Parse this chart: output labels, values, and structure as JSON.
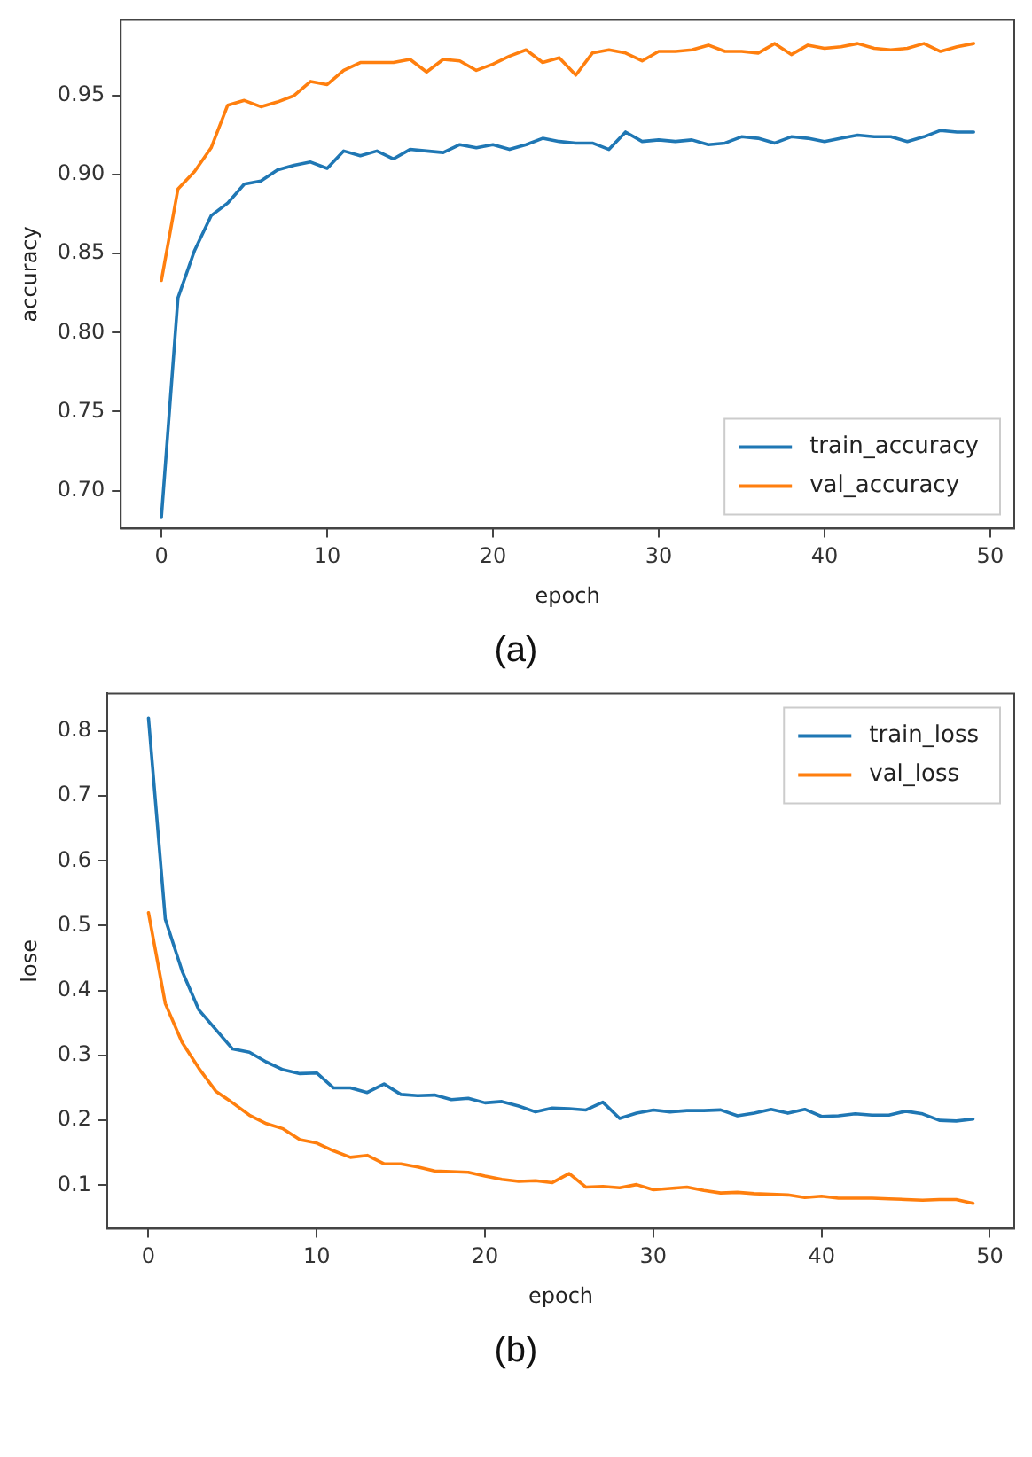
{
  "chart_data": [
    {
      "type": "line",
      "xlabel": "epoch",
      "ylabel": "accuracy",
      "annotations": [
        "(a)"
      ],
      "legend": "bottom right",
      "grid": false,
      "marker": "none",
      "line_style": "solid",
      "x": [
        0,
        1,
        2,
        3,
        4,
        5,
        6,
        7,
        8,
        9,
        10,
        11,
        12,
        13,
        14,
        15,
        16,
        17,
        18,
        19,
        20,
        21,
        22,
        23,
        24,
        25,
        26,
        27,
        28,
        29,
        30,
        31,
        32,
        33,
        34,
        35,
        36,
        37,
        38,
        39,
        40,
        41,
        42,
        43,
        44,
        45,
        46,
        47,
        48,
        49
      ],
      "xlim": [
        -2.45,
        51.45
      ],
      "xticks": [
        0,
        10,
        20,
        30,
        40,
        50
      ],
      "ylim": [
        0.676,
        0.998
      ],
      "yticks": [
        {
          "value": 0.7,
          "label": "0.70"
        },
        {
          "value": 0.75,
          "label": "0.75"
        },
        {
          "value": 0.8,
          "label": "0.80"
        },
        {
          "value": 0.85,
          "label": "0.85"
        },
        {
          "value": 0.9,
          "label": "0.90"
        },
        {
          "value": 0.95,
          "label": "0.95"
        }
      ],
      "series": [
        {
          "name": "train_accuracy",
          "color": "#1f77b4",
          "values": [
            0.683,
            0.822,
            0.852,
            0.874,
            0.882,
            0.894,
            0.896,
            0.903,
            0.906,
            0.908,
            0.904,
            0.915,
            0.912,
            0.915,
            0.91,
            0.916,
            0.915,
            0.914,
            0.919,
            0.917,
            0.919,
            0.916,
            0.919,
            0.923,
            0.921,
            0.92,
            0.92,
            0.916,
            0.927,
            0.921,
            0.922,
            0.921,
            0.922,
            0.919,
            0.92,
            0.924,
            0.923,
            0.92,
            0.924,
            0.923,
            0.921,
            0.923,
            0.925,
            0.924,
            0.924,
            0.921,
            0.924,
            0.928,
            0.927,
            0.927
          ]
        },
        {
          "name": "val_accuracy",
          "color": "#ff7f0e",
          "values": [
            0.833,
            0.891,
            0.902,
            0.917,
            0.944,
            0.947,
            0.943,
            0.946,
            0.95,
            0.959,
            0.957,
            0.966,
            0.971,
            0.971,
            0.971,
            0.973,
            0.965,
            0.973,
            0.972,
            0.966,
            0.97,
            0.975,
            0.979,
            0.971,
            0.974,
            0.963,
            0.977,
            0.979,
            0.977,
            0.972,
            0.978,
            0.978,
            0.979,
            0.982,
            0.978,
            0.978,
            0.977,
            0.983,
            0.976,
            0.982,
            0.98,
            0.981,
            0.983,
            0.98,
            0.979,
            0.98,
            0.983,
            0.978,
            0.981,
            0.983
          ]
        }
      ]
    },
    {
      "type": "line",
      "xlabel": "epoch",
      "ylabel": "lose",
      "annotations": [
        "(b)"
      ],
      "legend": "top right",
      "grid": false,
      "marker": "none",
      "line_style": "solid",
      "x": [
        0,
        1,
        2,
        3,
        4,
        5,
        6,
        7,
        8,
        9,
        10,
        11,
        12,
        13,
        14,
        15,
        16,
        17,
        18,
        19,
        20,
        21,
        22,
        23,
        24,
        25,
        26,
        27,
        28,
        29,
        30,
        31,
        32,
        33,
        34,
        35,
        36,
        37,
        38,
        39,
        40,
        41,
        42,
        43,
        44,
        45,
        46,
        47,
        48,
        49
      ],
      "xlim": [
        -2.45,
        51.45
      ],
      "xticks": [
        0,
        10,
        20,
        30,
        40,
        50
      ],
      "ylim": [
        0.033,
        0.858
      ],
      "yticks": [
        0.1,
        0.2,
        0.3,
        0.4,
        0.5,
        0.6,
        0.7,
        0.8
      ],
      "series": [
        {
          "name": "train_loss",
          "color": "#1f77b4",
          "values": [
            0.82,
            0.51,
            0.43,
            0.37,
            0.34,
            0.31,
            0.305,
            0.29,
            0.278,
            0.272,
            0.273,
            0.25,
            0.25,
            0.243,
            0.256,
            0.24,
            0.238,
            0.239,
            0.232,
            0.234,
            0.227,
            0.229,
            0.222,
            0.213,
            0.219,
            0.218,
            0.216,
            0.228,
            0.203,
            0.211,
            0.216,
            0.213,
            0.215,
            0.215,
            0.216,
            0.207,
            0.211,
            0.217,
            0.211,
            0.217,
            0.206,
            0.207,
            0.21,
            0.208,
            0.208,
            0.214,
            0.21,
            0.2,
            0.199,
            0.202
          ]
        },
        {
          "name": "val_loss",
          "color": "#ff7f0e",
          "values": [
            0.52,
            0.38,
            0.32,
            0.28,
            0.245,
            0.227,
            0.208,
            0.195,
            0.187,
            0.17,
            0.165,
            0.153,
            0.143,
            0.146,
            0.133,
            0.133,
            0.128,
            0.122,
            0.121,
            0.12,
            0.114,
            0.109,
            0.106,
            0.107,
            0.104,
            0.118,
            0.097,
            0.098,
            0.096,
            0.101,
            0.093,
            0.095,
            0.097,
            0.092,
            0.088,
            0.089,
            0.087,
            0.086,
            0.085,
            0.081,
            0.083,
            0.08,
            0.08,
            0.08,
            0.079,
            0.078,
            0.077,
            0.078,
            0.078,
            0.072
          ]
        }
      ]
    }
  ]
}
